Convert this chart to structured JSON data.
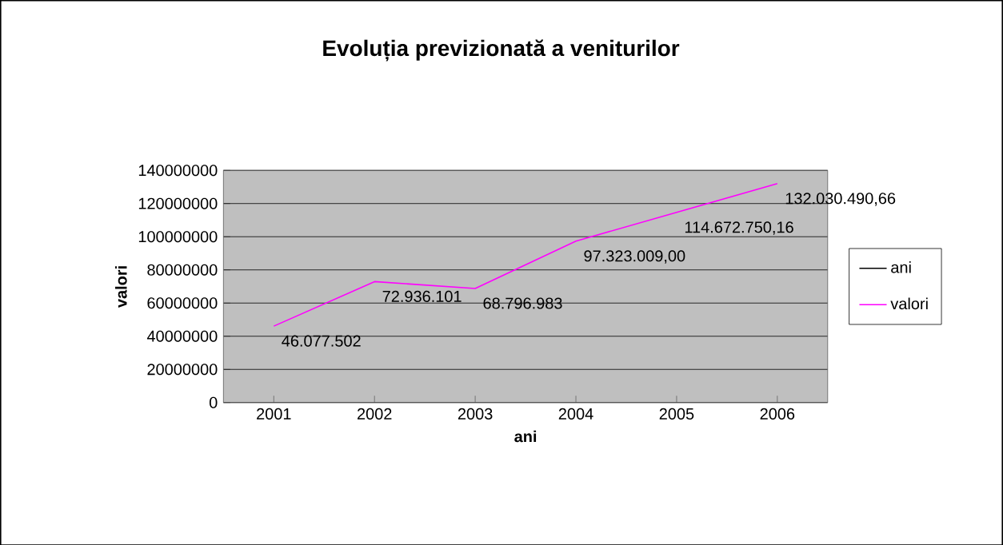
{
  "chart_data": {
    "type": "line",
    "title": "Evoluția previzionată a veniturilor",
    "xlabel": "ani",
    "ylabel": "valori",
    "categories": [
      "2001",
      "2002",
      "2003",
      "2004",
      "2005",
      "2006"
    ],
    "series": [
      {
        "name": "ani",
        "color": "#000000",
        "values": [
          null,
          null,
          null,
          null,
          null,
          null
        ]
      },
      {
        "name": "valori",
        "color": "#ff00ff",
        "values": [
          46077502,
          72936101,
          68796983,
          97323009,
          114672750.16,
          132030490.66
        ],
        "value_labels": [
          "46.077.502",
          "72.936.101",
          "68.796.983",
          "97.323.009,00",
          "114.672.750,16",
          "132.030.490,66"
        ]
      }
    ],
    "ylim": [
      0,
      140000000
    ],
    "yticks": [
      0,
      20000000,
      40000000,
      60000000,
      80000000,
      100000000,
      120000000,
      140000000
    ],
    "grid": "y",
    "legend": "right",
    "marker": "none",
    "line_style": "solid"
  }
}
